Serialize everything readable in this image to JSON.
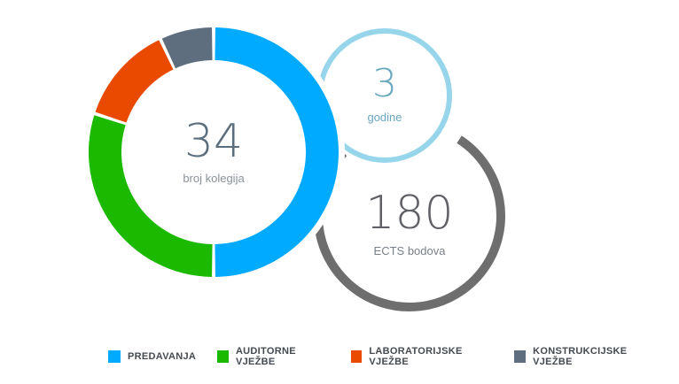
{
  "chart_data": {
    "type": "pie",
    "variant": "donut",
    "center_value": "34",
    "center_label": "broj kolegija",
    "categories": [
      "PREDAVANJA",
      "AUDITORNE VJEŽBE",
      "LABORATORIJSKE VJEŽBE",
      "KONSTRUKCIJSKE VJEŽBE"
    ],
    "values": [
      50,
      30,
      13,
      7
    ],
    "colors": [
      "#00aaff",
      "#1bb900",
      "#e94a00",
      "#5e6e7e"
    ],
    "legend_position": "bottom"
  },
  "stats": [
    {
      "value": "3",
      "label": "godine",
      "ring_color": "#96d5ea",
      "value_color": "#6aa8be",
      "ring_fraction": 1.0
    },
    {
      "value": "180",
      "label": "ECTS bodova",
      "ring_color": "#6e6e6e",
      "value_color": "#5f6166",
      "ring_fraction": 0.78
    }
  ]
}
